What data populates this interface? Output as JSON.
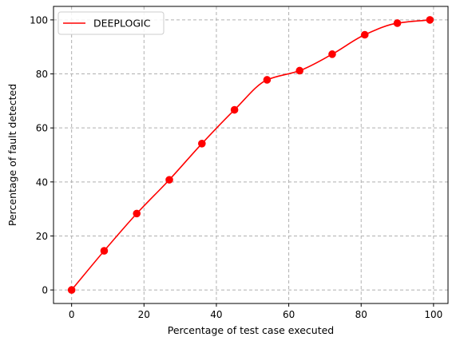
{
  "chart_data": {
    "type": "line",
    "title": "",
    "xlabel": "Percentage of test case executed",
    "ylabel": "Percentage of fault detected",
    "xlim": [
      -5,
      104
    ],
    "ylim": [
      -5,
      105
    ],
    "xticks": [
      0,
      20,
      40,
      60,
      80,
      100
    ],
    "yticks": [
      0,
      20,
      40,
      60,
      80,
      100
    ],
    "grid": true,
    "legend_position": "upper-left",
    "series": [
      {
        "name": "DEEPLOGIC",
        "color": "#ff0000",
        "marker": "circle",
        "smooth": true,
        "x": [
          0,
          9,
          18,
          27,
          36,
          45,
          54,
          63,
          72,
          81,
          90,
          99
        ],
        "y": [
          0,
          14.5,
          28.3,
          40.8,
          54.2,
          66.7,
          77.8,
          81.2,
          87.3,
          94.5,
          98.8,
          100
        ]
      }
    ]
  }
}
